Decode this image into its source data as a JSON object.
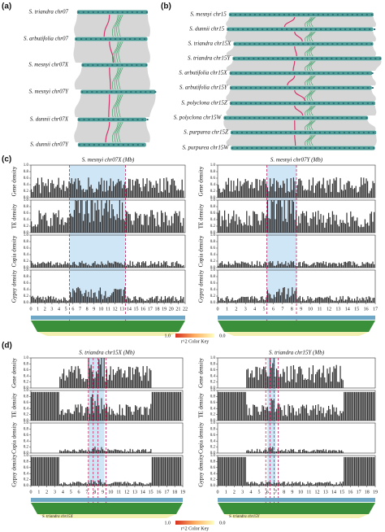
{
  "panel_a": {
    "label": "(a)",
    "chromosomes": [
      "S. triandra chr07",
      "S. arbutifolia chr07",
      "S. mesnyi chr07X",
      "S. mesnyi chr07Y",
      "S. dunnii chr07X",
      "S. dunnii chr07Y"
    ]
  },
  "panel_b": {
    "label": "(b)",
    "chromosomes": [
      "S. mesnyi chr15",
      "S. dunnii chr15",
      "S. triandra chr15X",
      "S. triandra chr15Y",
      "S. arbutifolia chr15X",
      "S. arbutifolia chr15Y",
      "S. polyclona chr15Z",
      "S. polyclona chr15W",
      "S. purpurea chr15Z",
      "S. purpurea chr15W"
    ]
  },
  "panel_c": {
    "label": "(c)",
    "track_labels": [
      "Gene density",
      "TE density",
      "Copia density",
      "Gypsy density"
    ],
    "yticks": [
      "0.0",
      "0.2",
      "0.4",
      "0.6",
      "0.8",
      "1.0"
    ],
    "left": {
      "title": "S. mesnyi chr07X (Mb)",
      "xticks": [
        "0",
        "1",
        "2",
        "3",
        "4",
        "5",
        "6",
        "7",
        "8",
        "9",
        "10",
        "11",
        "12",
        "13",
        "14",
        "15",
        "16",
        "17",
        "18",
        "19",
        "20",
        "21",
        "22"
      ]
    },
    "right": {
      "title": "S. mesnyi chr07Y (Mb)",
      "xticks": [
        "0",
        "1",
        "2",
        "3",
        "4",
        "5",
        "6",
        "7",
        "8",
        "9",
        "10",
        "11",
        "12",
        "13",
        "14",
        "15",
        "16",
        "17"
      ]
    },
    "color_key": {
      "high": "1.0",
      "low": "0.0",
      "title": "r^2 Color Key"
    }
  },
  "panel_d": {
    "label": "(d)",
    "track_labels": [
      "Gene density",
      "TE density",
      "Copia density",
      "Gypsy density"
    ],
    "yticks": [
      "0.0",
      "0.2",
      "0.4",
      "0.6",
      "0.8",
      "1.0"
    ],
    "left": {
      "title": "S. triandra chr15X (Mb)",
      "xticks": [
        "0",
        "1",
        "2",
        "3",
        "4",
        "5",
        "6",
        "7",
        "8",
        "9",
        "10",
        "11",
        "12",
        "13",
        "14",
        "15",
        "16",
        "17",
        "18",
        "19"
      ],
      "strip_label": "S. triandra chr15X"
    },
    "right": {
      "title": "S. triandra chr15Y (Mb)",
      "xticks": [
        "0",
        "1",
        "2",
        "3",
        "4",
        "5",
        "6",
        "7",
        "8",
        "9",
        "10",
        "11",
        "12",
        "13",
        "14",
        "15",
        "16",
        "17",
        "18",
        "19"
      ],
      "strip_label": "S. triandra chr15Y"
    },
    "color_key": {
      "high": "1.0",
      "low": "0.0",
      "title": "r^2 Color Key"
    }
  }
}
